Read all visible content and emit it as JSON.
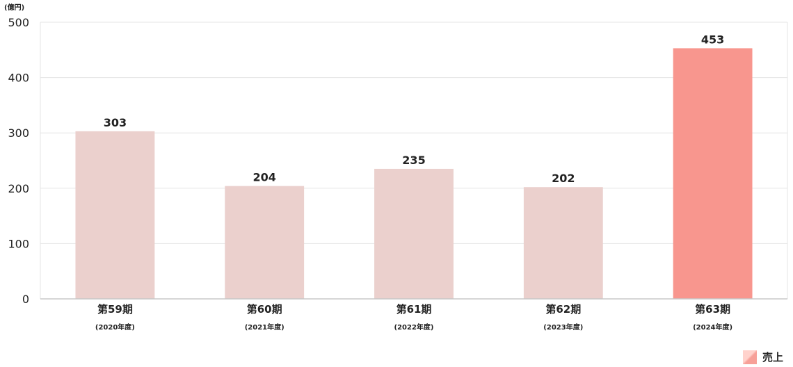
{
  "chart_data": {
    "type": "bar",
    "unit_label": "(億円)",
    "categories": [
      "第59期",
      "第60期",
      "第61期",
      "第62期",
      "第63期"
    ],
    "sub_labels": [
      "(2020年度)",
      "(2021年度)",
      "(2022年度)",
      "(2023年度)",
      "(2024年度)"
    ],
    "series": [
      {
        "name": "売上",
        "values": [
          303,
          204,
          235,
          202,
          453
        ]
      }
    ],
    "ylim": [
      0,
      500
    ],
    "yticks": [
      0,
      100,
      200,
      300,
      400,
      500
    ],
    "grid": true,
    "legend": "bottom-right",
    "highlight_index": 4,
    "colors": {
      "bar": "#ebd0cd",
      "highlight": "#f8968e",
      "grid": "#e4e4e4",
      "axis": "#c8c8c8"
    }
  }
}
